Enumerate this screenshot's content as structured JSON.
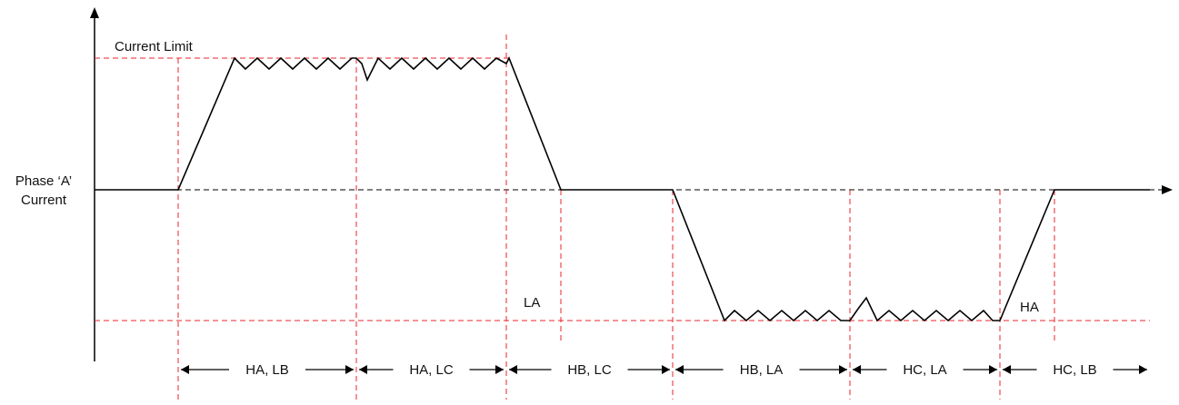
{
  "y_label_line1": "Phase ‘A’",
  "y_label_line2": "Current",
  "current_limit_label": "Current Limit",
  "la_label": "LA",
  "ha_label": "HA",
  "segments": [
    "HA, LB",
    "HA, LC",
    "HB, LC",
    "HB, LA",
    "HC, LA",
    "HC, LB"
  ],
  "colors": {
    "waveform": "#000000",
    "limit_lines": "#e8262b",
    "axis": "#000000"
  }
}
